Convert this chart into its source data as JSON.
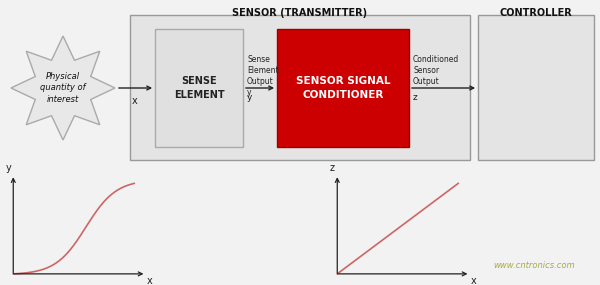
{
  "bg_color": "#f2f2f2",
  "title_sensor": "SENSOR (TRANSMITTER)",
  "title_controller": "CONTROLLER",
  "sense_element_label": "SENSE\nELEMENT",
  "conditioner_label": "SENSOR SIGNAL\nCONDITIONER",
  "physical_label": "Physical\nquantity of\ninterest",
  "sense_output_label": "Sense\nElement\nOutput\ny",
  "conditioned_label": "Conditioned\nSensor\nOutput",
  "x_label": "x",
  "y_label": "y",
  "z_label": "z",
  "z_arrow_label": "z",
  "watermark": "www.cntronics.com",
  "red_color": "#cc0000",
  "sense_element_color": "#e0e0e0",
  "sensor_box_color": "#e4e4e4",
  "controller_box_color": "#e4e4e4",
  "arrow_color": "#222222",
  "text_color": "#111111",
  "watermark_color": "#aaaa44",
  "curve_color": "#cc6666",
  "linear_color": "#cc6666"
}
